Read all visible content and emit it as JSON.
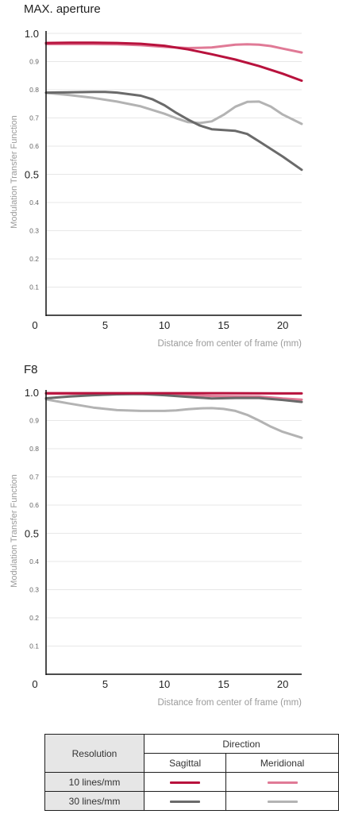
{
  "chart_data": [
    {
      "type": "line",
      "title": "MAX. aperture",
      "xlabel": "Distance from center of frame (mm)",
      "ylabel": "Modulation Transfer Function",
      "xlim": [
        0,
        21.6
      ],
      "ylim": [
        0,
        1.0
      ],
      "xticks": [
        "0",
        "5",
        "10",
        "15",
        "20"
      ],
      "yticks": [
        "0.1",
        "0.2",
        "0.3",
        "0.4",
        "0.5",
        "0.6",
        "0.7",
        "0.8",
        "0.9",
        "1.0"
      ],
      "series": [
        {
          "name": "10 lines/mm Sagittal",
          "color": "#b8123d",
          "x": [
            0,
            2,
            4,
            6,
            8,
            10,
            12,
            14,
            16,
            18,
            20,
            21.6
          ],
          "y": [
            0.966,
            0.967,
            0.967,
            0.966,
            0.963,
            0.956,
            0.943,
            0.926,
            0.907,
            0.884,
            0.857,
            0.832
          ]
        },
        {
          "name": "10 lines/mm Meridional",
          "color": "#e07a96",
          "x": [
            0,
            2,
            4,
            6,
            8,
            10,
            12,
            14,
            15,
            16,
            17,
            18,
            19,
            20,
            21.6
          ],
          "y": [
            0.962,
            0.962,
            0.962,
            0.961,
            0.958,
            0.952,
            0.948,
            0.95,
            0.955,
            0.96,
            0.961,
            0.96,
            0.955,
            0.946,
            0.932
          ]
        },
        {
          "name": "30 lines/mm Sagittal",
          "color": "#6a6a6a",
          "x": [
            0,
            2,
            4,
            5,
            6,
            8,
            9,
            10,
            11,
            12,
            13,
            14,
            16,
            17,
            18,
            20,
            21.6
          ],
          "y": [
            0.79,
            0.791,
            0.792,
            0.792,
            0.79,
            0.779,
            0.766,
            0.745,
            0.718,
            0.694,
            0.673,
            0.66,
            0.654,
            0.643,
            0.617,
            0.563,
            0.516
          ]
        },
        {
          "name": "30 lines/mm Meridional",
          "color": "#b3b3b3",
          "x": [
            0,
            2,
            4,
            6,
            8,
            10,
            11,
            12,
            13,
            14,
            15,
            16,
            17,
            18,
            19,
            20,
            21.6
          ],
          "y": [
            0.789,
            0.781,
            0.771,
            0.758,
            0.741,
            0.715,
            0.699,
            0.685,
            0.682,
            0.688,
            0.711,
            0.74,
            0.757,
            0.758,
            0.74,
            0.712,
            0.679
          ]
        }
      ]
    },
    {
      "type": "line",
      "title": "F8",
      "xlabel": "Distance from center of frame (mm)",
      "ylabel": "Modulation Transfer Function",
      "xlim": [
        0,
        21.6
      ],
      "ylim": [
        0,
        1.0
      ],
      "xticks": [
        "0",
        "5",
        "10",
        "15",
        "20"
      ],
      "yticks": [
        "0.1",
        "0.2",
        "0.3",
        "0.4",
        "0.5",
        "0.6",
        "0.7",
        "0.8",
        "0.9",
        "1.0"
      ],
      "series": [
        {
          "name": "10 lines/mm Sagittal",
          "color": "#b8123d",
          "x": [
            0,
            5,
            10,
            15,
            20,
            21.6
          ],
          "y": [
            0.997,
            0.997,
            0.997,
            0.997,
            0.996,
            0.996
          ]
        },
        {
          "name": "10 lines/mm Meridional",
          "color": "#e07a96",
          "x": [
            0,
            5,
            10,
            12,
            14,
            16,
            18,
            20,
            21.6
          ],
          "y": [
            0.995,
            0.995,
            0.993,
            0.99,
            0.987,
            0.986,
            0.985,
            0.978,
            0.974
          ]
        },
        {
          "name": "30 lines/mm Sagittal",
          "color": "#6a6a6a",
          "x": [
            0,
            2,
            4,
            6,
            8,
            10,
            12,
            14,
            16,
            18,
            20,
            21.6
          ],
          "y": [
            0.979,
            0.985,
            0.99,
            0.993,
            0.994,
            0.99,
            0.984,
            0.978,
            0.98,
            0.98,
            0.973,
            0.966
          ]
        },
        {
          "name": "30 lines/mm Meridional",
          "color": "#b3b3b3",
          "x": [
            0,
            2,
            4,
            6,
            8,
            10,
            11,
            12,
            13,
            14,
            15,
            16,
            17,
            18,
            19,
            20,
            21.6
          ],
          "y": [
            0.975,
            0.96,
            0.946,
            0.937,
            0.934,
            0.934,
            0.936,
            0.94,
            0.943,
            0.944,
            0.941,
            0.934,
            0.92,
            0.9,
            0.878,
            0.86,
            0.839
          ]
        }
      ]
    }
  ],
  "legend": {
    "resolution_header": "Resolution",
    "direction_header": "Direction",
    "sagittal_label": "Sagittal",
    "meridional_label": "Meridional",
    "row1_label": "10 lines/mm",
    "row2_label": "30 lines/mm",
    "color_10_sagittal": "#b8123d",
    "color_10_meridional": "#e07a96",
    "color_30_sagittal": "#6a6a6a",
    "color_30_meridional": "#b3b3b3"
  }
}
